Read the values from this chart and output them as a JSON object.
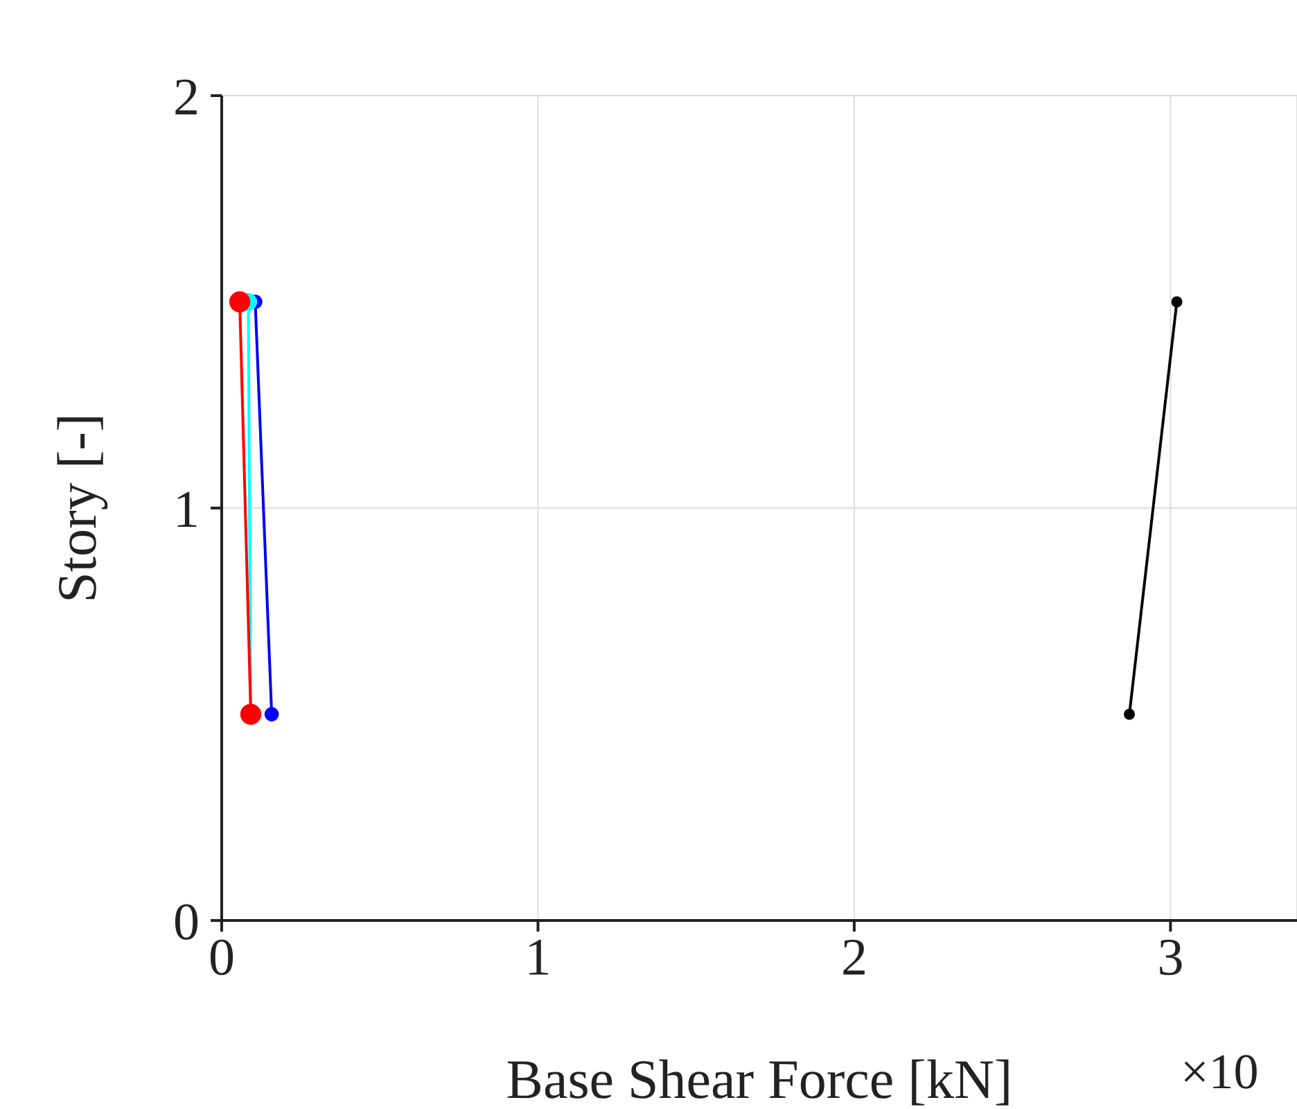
{
  "chart_data": {
    "type": "line",
    "xlabel": "Base Shear Force [kN]",
    "ylabel": "Story [-]",
    "annotations": [
      "×10"
    ],
    "xlim": [
      0,
      3.4
    ],
    "xticks": [
      0,
      1,
      2,
      3
    ],
    "ylim": [
      0,
      2
    ],
    "yticks": [
      0,
      1,
      2
    ],
    "grid": true,
    "marker": "circle",
    "line_style": "solid",
    "series": [
      {
        "color": "#ff0000",
        "x": [
          0.092,
          0.057
        ],
        "values": [
          0.5,
          1.5
        ]
      },
      {
        "color": "#00ffff",
        "x": [
          0.092,
          0.084
        ],
        "values": [
          0.5,
          1.5
        ]
      },
      {
        "color": "#0000ff",
        "x": [
          0.158,
          0.106
        ],
        "values": [
          0.5,
          1.5
        ]
      },
      {
        "color": "#000000",
        "x": [
          2.87,
          3.02
        ],
        "values": [
          0.5,
          1.5
        ]
      }
    ]
  }
}
